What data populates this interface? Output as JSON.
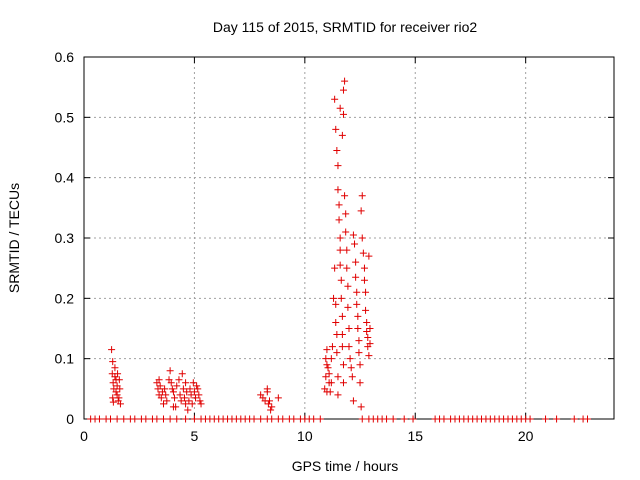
{
  "chart_data": {
    "type": "scatter",
    "title": "Day 115 of 2015, SRMTID for receiver rio2",
    "xlabel": "GPS time / hours",
    "ylabel": "SRMTID / TECUs",
    "xlim": [
      0,
      24
    ],
    "ylim": [
      0,
      0.6
    ],
    "xticks": [
      0,
      5,
      10,
      15,
      20
    ],
    "yticks": [
      0,
      0.1,
      0.2,
      0.3,
      0.4,
      0.5,
      0.6
    ],
    "xtick_labels": [
      "0",
      "5",
      "10",
      "15",
      "20"
    ],
    "ytick_labels": [
      "0",
      "0.1",
      "0.2",
      "0.3",
      "0.4",
      "0.5",
      "0.6"
    ],
    "grid": true,
    "marker": "+",
    "color": "#e00000",
    "series": [
      {
        "name": "rio2",
        "points": [
          [
            0.3,
            0
          ],
          [
            0.5,
            0
          ],
          [
            0.7,
            0
          ],
          [
            1.0,
            0
          ],
          [
            1.2,
            0
          ],
          [
            1.5,
            0
          ],
          [
            1.8,
            0
          ],
          [
            2.1,
            0
          ],
          [
            2.3,
            0
          ],
          [
            2.6,
            0
          ],
          [
            2.8,
            0
          ],
          [
            3.1,
            0
          ],
          [
            3.3,
            0
          ],
          [
            3.6,
            0
          ],
          [
            3.9,
            0
          ],
          [
            4.2,
            0
          ],
          [
            4.6,
            0
          ],
          [
            5.0,
            0
          ],
          [
            5.3,
            0
          ],
          [
            5.5,
            0
          ],
          [
            5.7,
            0
          ],
          [
            5.9,
            0
          ],
          [
            6.1,
            0
          ],
          [
            6.3,
            0
          ],
          [
            6.5,
            0
          ],
          [
            6.7,
            0
          ],
          [
            6.9,
            0
          ],
          [
            7.1,
            0
          ],
          [
            7.3,
            0
          ],
          [
            7.5,
            0
          ],
          [
            7.7,
            0
          ],
          [
            8.0,
            0
          ],
          [
            8.3,
            0
          ],
          [
            8.5,
            0
          ],
          [
            8.8,
            0
          ],
          [
            9.0,
            0
          ],
          [
            9.3,
            0
          ],
          [
            9.5,
            0
          ],
          [
            9.8,
            0
          ],
          [
            10.0,
            0
          ],
          [
            10.2,
            0
          ],
          [
            10.4,
            0
          ],
          [
            10.7,
            0
          ],
          [
            12.6,
            0
          ],
          [
            12.9,
            0
          ],
          [
            13.1,
            0
          ],
          [
            13.3,
            0
          ],
          [
            13.5,
            0
          ],
          [
            13.7,
            0
          ],
          [
            14.0,
            0
          ],
          [
            14.5,
            0
          ],
          [
            14.9,
            0
          ],
          [
            15.9,
            0
          ],
          [
            16.1,
            0
          ],
          [
            16.3,
            0
          ],
          [
            16.6,
            0
          ],
          [
            16.8,
            0
          ],
          [
            17.0,
            0
          ],
          [
            17.2,
            0
          ],
          [
            17.4,
            0
          ],
          [
            17.6,
            0
          ],
          [
            17.8,
            0
          ],
          [
            18.0,
            0
          ],
          [
            18.2,
            0
          ],
          [
            18.4,
            0
          ],
          [
            18.6,
            0
          ],
          [
            18.8,
            0
          ],
          [
            19.0,
            0
          ],
          [
            19.2,
            0
          ],
          [
            19.4,
            0
          ],
          [
            19.6,
            0
          ],
          [
            19.8,
            0
          ],
          [
            20.0,
            0
          ],
          [
            20.2,
            0
          ],
          [
            20.9,
            0
          ],
          [
            21.4,
            0
          ],
          [
            22.2,
            0
          ],
          [
            22.6,
            0
          ],
          [
            22.8,
            0
          ],
          [
            1.25,
            0.115
          ],
          [
            1.3,
            0.095
          ],
          [
            1.28,
            0.075
          ],
          [
            1.32,
            0.06
          ],
          [
            1.35,
            0.05
          ],
          [
            1.3,
            0.035
          ],
          [
            1.33,
            0.028
          ],
          [
            1.4,
            0.07
          ],
          [
            1.45,
            0.065
          ],
          [
            1.5,
            0.055
          ],
          [
            1.45,
            0.045
          ],
          [
            1.5,
            0.04
          ],
          [
            1.55,
            0.03
          ],
          [
            1.6,
            0.065
          ],
          [
            1.62,
            0.05
          ],
          [
            1.58,
            0.035
          ],
          [
            1.65,
            0.025
          ],
          [
            1.52,
            0.075
          ],
          [
            1.4,
            0.085
          ],
          [
            3.3,
            0.06
          ],
          [
            3.35,
            0.05
          ],
          [
            3.4,
            0.04
          ],
          [
            3.45,
            0.055
          ],
          [
            3.5,
            0.035
          ],
          [
            3.55,
            0.045
          ],
          [
            3.6,
            0.025
          ],
          [
            3.65,
            0.05
          ],
          [
            3.7,
            0.04
          ],
          [
            3.75,
            0.03
          ],
          [
            3.85,
            0.065
          ],
          [
            3.9,
            0.08
          ],
          [
            3.95,
            0.06
          ],
          [
            4.0,
            0.05
          ],
          [
            4.05,
            0.045
          ],
          [
            4.1,
            0.035
          ],
          [
            4.15,
            0.02
          ],
          [
            4.2,
            0.055
          ],
          [
            4.3,
            0.065
          ],
          [
            4.35,
            0.04
          ],
          [
            4.4,
            0.03
          ],
          [
            4.45,
            0.075
          ],
          [
            4.5,
            0.05
          ],
          [
            4.55,
            0.035
          ],
          [
            4.6,
            0.025
          ],
          [
            4.65,
            0.045
          ],
          [
            4.7,
            0.015
          ],
          [
            4.75,
            0.03
          ],
          [
            4.8,
            0.05
          ],
          [
            4.85,
            0.04
          ],
          [
            4.9,
            0.025
          ],
          [
            4.95,
            0.06
          ],
          [
            5.0,
            0.045
          ],
          [
            5.05,
            0.035
          ],
          [
            5.1,
            0.055
          ],
          [
            5.15,
            0.05
          ],
          [
            5.2,
            0.04
          ],
          [
            5.25,
            0.03
          ],
          [
            5.3,
            0.025
          ],
          [
            3.4,
            0.065
          ],
          [
            4.05,
            0.02
          ],
          [
            4.6,
            0.06
          ],
          [
            8.0,
            0.04
          ],
          [
            8.1,
            0.035
          ],
          [
            8.2,
            0.03
          ],
          [
            8.3,
            0.045
          ],
          [
            8.35,
            0.025
          ],
          [
            8.4,
            0.03
          ],
          [
            8.45,
            0.015
          ],
          [
            8.5,
            0.02
          ],
          [
            8.8,
            0.035
          ],
          [
            8.3,
            0.05
          ],
          [
            10.9,
            0.05
          ],
          [
            10.95,
            0.07
          ],
          [
            11.0,
            0.09
          ],
          [
            10.95,
            0.1
          ],
          [
            11.0,
            0.115
          ],
          [
            11.05,
            0.085
          ],
          [
            11.1,
            0.075
          ],
          [
            11.1,
            0.06
          ],
          [
            11.15,
            0.045
          ],
          [
            11.2,
            0.1
          ],
          [
            11.25,
            0.12
          ],
          [
            11.3,
            0.2
          ],
          [
            11.35,
            0.25
          ],
          [
            11.4,
            0.19
          ],
          [
            11.4,
            0.16
          ],
          [
            11.45,
            0.14
          ],
          [
            11.45,
            0.11
          ],
          [
            11.5,
            0.07
          ],
          [
            11.5,
            0.04
          ],
          [
            11.35,
            0.53
          ],
          [
            11.4,
            0.48
          ],
          [
            11.45,
            0.445
          ],
          [
            11.5,
            0.42
          ],
          [
            11.5,
            0.38
          ],
          [
            11.55,
            0.355
          ],
          [
            11.55,
            0.33
          ],
          [
            11.6,
            0.3
          ],
          [
            11.6,
            0.28
          ],
          [
            11.6,
            0.255
          ],
          [
            11.65,
            0.23
          ],
          [
            11.65,
            0.2
          ],
          [
            11.7,
            0.17
          ],
          [
            11.7,
            0.14
          ],
          [
            11.7,
            0.12
          ],
          [
            11.75,
            0.09
          ],
          [
            11.75,
            0.06
          ],
          [
            11.6,
            0.515
          ],
          [
            11.7,
            0.47
          ],
          [
            11.75,
            0.545
          ],
          [
            11.8,
            0.56
          ],
          [
            11.75,
            0.505
          ],
          [
            11.8,
            0.37
          ],
          [
            11.85,
            0.34
          ],
          [
            11.85,
            0.31
          ],
          [
            11.9,
            0.28
          ],
          [
            11.9,
            0.25
          ],
          [
            11.95,
            0.22
          ],
          [
            11.95,
            0.185
          ],
          [
            12.0,
            0.15
          ],
          [
            12.0,
            0.12
          ],
          [
            12.05,
            0.1
          ],
          [
            12.1,
            0.085
          ],
          [
            12.15,
            0.07
          ],
          [
            12.2,
            0.03
          ],
          [
            12.2,
            0.305
          ],
          [
            12.25,
            0.29
          ],
          [
            12.3,
            0.26
          ],
          [
            12.3,
            0.235
          ],
          [
            12.35,
            0.21
          ],
          [
            12.35,
            0.19
          ],
          [
            12.4,
            0.17
          ],
          [
            12.4,
            0.15
          ],
          [
            12.45,
            0.13
          ],
          [
            12.45,
            0.11
          ],
          [
            12.5,
            0.09
          ],
          [
            12.5,
            0.06
          ],
          [
            12.55,
            0.02
          ],
          [
            12.55,
            0.345
          ],
          [
            12.6,
            0.37
          ],
          [
            12.6,
            0.3
          ],
          [
            12.65,
            0.275
          ],
          [
            12.7,
            0.25
          ],
          [
            12.7,
            0.23
          ],
          [
            12.75,
            0.21
          ],
          [
            12.75,
            0.18
          ],
          [
            12.8,
            0.16
          ],
          [
            12.8,
            0.145
          ],
          [
            12.85,
            0.135
          ],
          [
            12.85,
            0.12
          ],
          [
            12.9,
            0.105
          ],
          [
            12.9,
            0.27
          ],
          [
            12.95,
            0.15
          ],
          [
            12.95,
            0.125
          ],
          [
            11.2,
            0.06
          ],
          [
            11.0,
            0.045
          ]
        ]
      }
    ]
  }
}
